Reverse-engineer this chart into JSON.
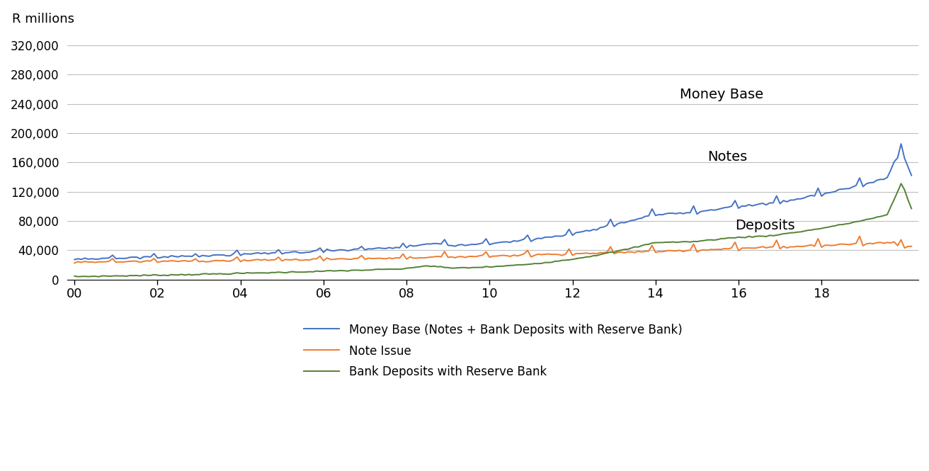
{
  "ylabel": "R millions",
  "xlim": [
    -2,
    244
  ],
  "ylim": [
    0,
    340000
  ],
  "yticks": [
    0,
    40000,
    80000,
    120000,
    160000,
    200000,
    240000,
    280000,
    320000
  ],
  "xtick_positions": [
    0,
    24,
    48,
    72,
    96,
    120,
    144,
    168,
    192,
    216
  ],
  "xtick_labels": [
    "00",
    "02",
    "04",
    "06",
    "08",
    "10",
    "12",
    "14",
    "16",
    "18"
  ],
  "money_base_color": "#4472C4",
  "note_issue_color": "#ED7D31",
  "deposits_color": "#548235",
  "line_width": 1.4,
  "annotation_money_base": "Money Base",
  "annotation_notes": "Notes",
  "annotation_deposits": "Deposits",
  "legend_labels": [
    "Money Base (Notes + Bank Deposits with Reserve Bank)",
    "Note Issue",
    "Bank Deposits with Reserve Bank"
  ],
  "background_color": "#FFFFFF",
  "grid_color": "#BFBFBF"
}
